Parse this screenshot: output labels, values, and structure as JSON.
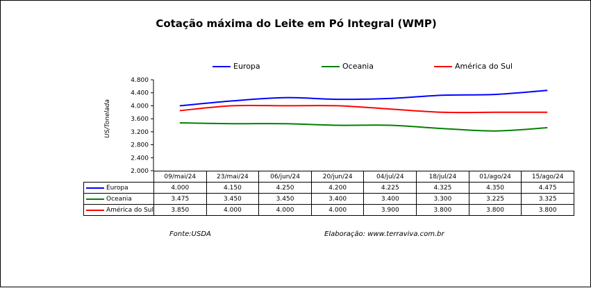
{
  "chart_data": {
    "type": "line",
    "title": "Cotação máxima do Leite em Pó Integral (WMP)",
    "ylabel": "US/Tonelada",
    "xlabel": "",
    "ylim": [
      2000,
      4800
    ],
    "yticks": [
      "4.800",
      "4.400",
      "4.000",
      "3.600",
      "3.200",
      "2.800",
      "2.400",
      "2.000"
    ],
    "categories": [
      "09/mai/24",
      "23/mai/24",
      "06/jun/24",
      "20/jun/24",
      "04/jul/24",
      "18/jul/24",
      "01/ago/24",
      "15/ago/24"
    ],
    "legend_position": "top",
    "grid": false,
    "series": [
      {
        "name": "Europa",
        "color": "#0000ff",
        "values": [
          4000,
          4150,
          4250,
          4200,
          4225,
          4325,
          4350,
          4475
        ],
        "labels": [
          "4.000",
          "4.150",
          "4.250",
          "4.200",
          "4.225",
          "4.325",
          "4.350",
          "4.475"
        ]
      },
      {
        "name": "Oceania",
        "color": "#008000",
        "values": [
          3475,
          3450,
          3450,
          3400,
          3400,
          3300,
          3225,
          3325
        ],
        "labels": [
          "3.475",
          "3.450",
          "3.450",
          "3.400",
          "3.400",
          "3.300",
          "3.225",
          "3.325"
        ]
      },
      {
        "name": "América do Sul",
        "color": "#ff0000",
        "values": [
          3850,
          4000,
          4000,
          4000,
          3900,
          3800,
          3800,
          3800
        ],
        "labels": [
          "3.850",
          "4.000",
          "4.000",
          "4.000",
          "3.900",
          "3.800",
          "3.800",
          "3.800"
        ]
      }
    ]
  },
  "footer": {
    "source": "Fonte:USDA",
    "credit": "Elaboração:  www.terraviva.com.br"
  }
}
